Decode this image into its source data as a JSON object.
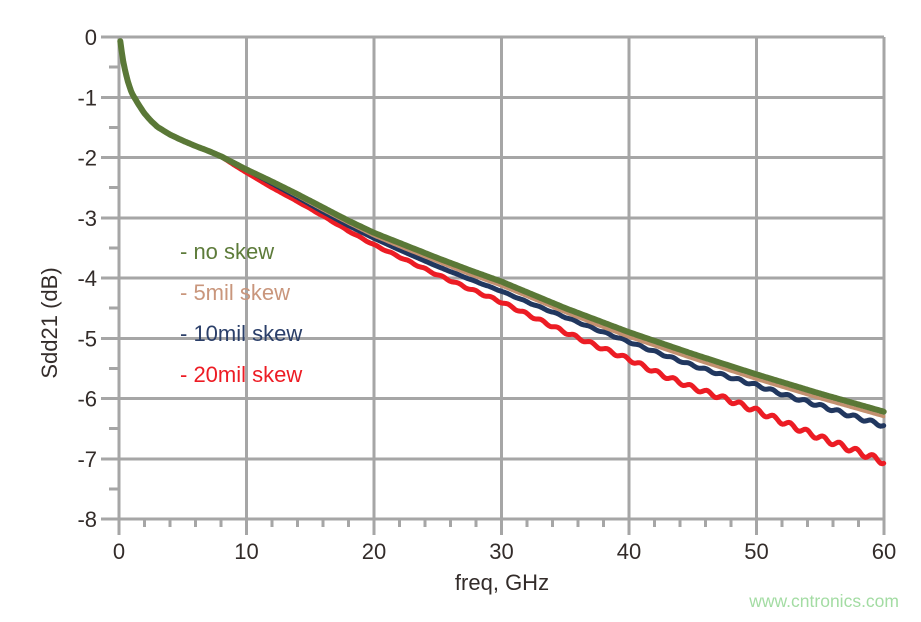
{
  "chart_data": {
    "type": "line",
    "title": "",
    "xlabel": "freq, GHz",
    "ylabel": "Sdd21 (dB)",
    "xlim": [
      0,
      60
    ],
    "ylim": [
      -8,
      0
    ],
    "grid": "major",
    "grid_color": "#a6a6a6",
    "text_color": "#332c2a",
    "background": "#ffffff",
    "x_major_ticks": [
      0,
      10,
      20,
      30,
      40,
      50,
      60
    ],
    "x_minor_step_ghz": 2,
    "y_major_ticks": [
      0,
      -1,
      -2,
      -3,
      -4,
      -5,
      -6,
      -7,
      -8
    ],
    "y_minor_step_db": 0.5,
    "x": [
      0.1,
      0.3,
      0.5,
      0.75,
      1,
      1.5,
      2,
      2.5,
      3,
      4,
      5,
      6,
      7,
      8,
      9,
      10,
      12,
      14,
      16,
      18,
      20,
      22.5,
      25,
      27.5,
      30,
      32.5,
      35,
      37.5,
      40,
      42.5,
      45,
      47.5,
      50,
      52.5,
      55,
      57.5,
      60
    ],
    "series": [
      {
        "name": "no skew",
        "color": "#5a7837",
        "width": 6,
        "y": [
          -0.07,
          -0.37,
          -0.58,
          -0.78,
          -0.93,
          -1.11,
          -1.27,
          -1.39,
          -1.49,
          -1.62,
          -1.72,
          -1.81,
          -1.89,
          -1.98,
          -2.09,
          -2.2,
          -2.4,
          -2.61,
          -2.83,
          -3.05,
          -3.25,
          -3.46,
          -3.67,
          -3.87,
          -4.06,
          -4.28,
          -4.5,
          -4.7,
          -4.9,
          -5.08,
          -5.26,
          -5.43,
          -5.6,
          -5.76,
          -5.92,
          -6.07,
          -6.22
        ]
      },
      {
        "name": "5mil skew",
        "color": "#c3906f",
        "width": 3.5,
        "y": [
          -0.07,
          -0.37,
          -0.58,
          -0.78,
          -0.93,
          -1.11,
          -1.27,
          -1.39,
          -1.49,
          -1.62,
          -1.72,
          -1.81,
          -1.89,
          -1.98,
          -2.09,
          -2.2,
          -2.42,
          -2.64,
          -2.87,
          -3.09,
          -3.3,
          -3.52,
          -3.73,
          -3.94,
          -4.13,
          -4.35,
          -4.57,
          -4.78,
          -4.98,
          -5.16,
          -5.34,
          -5.51,
          -5.68,
          -5.84,
          -6.0,
          -6.15,
          -6.3
        ]
      },
      {
        "name": "10mil skew",
        "color": "#21375f",
        "width": 5,
        "ripple": {
          "start_ghz": 24,
          "max_amp_db": 0.028,
          "period_ghz": 1.3,
          "phase": 2.0
        },
        "y": [
          -0.07,
          -0.37,
          -0.58,
          -0.78,
          -0.93,
          -1.11,
          -1.27,
          -1.39,
          -1.49,
          -1.62,
          -1.72,
          -1.81,
          -1.89,
          -1.98,
          -2.09,
          -2.2,
          -2.43,
          -2.66,
          -2.9,
          -3.13,
          -3.34,
          -3.58,
          -3.81,
          -4.02,
          -4.22,
          -4.44,
          -4.65,
          -4.86,
          -5.06,
          -5.26,
          -5.45,
          -5.62,
          -5.78,
          -5.96,
          -6.12,
          -6.29,
          -6.45
        ]
      },
      {
        "name": "20mil skew",
        "color": "#ec1c24",
        "width": 5,
        "ripple": {
          "start_ghz": 12,
          "max_amp_db": 0.048,
          "period_ghz": 1.3,
          "phase": 0.0
        },
        "y": [
          -0.07,
          -0.37,
          -0.58,
          -0.78,
          -0.93,
          -1.11,
          -1.27,
          -1.39,
          -1.49,
          -1.62,
          -1.72,
          -1.81,
          -1.89,
          -1.98,
          -2.12,
          -2.25,
          -2.5,
          -2.73,
          -2.97,
          -3.22,
          -3.45,
          -3.7,
          -3.95,
          -4.18,
          -4.4,
          -4.65,
          -4.9,
          -5.13,
          -5.35,
          -5.6,
          -5.82,
          -6.0,
          -6.2,
          -6.43,
          -6.65,
          -6.85,
          -7.05
        ]
      }
    ],
    "legend": {
      "position": "inside-upper-left",
      "items": [
        {
          "label": "- no skew",
          "color": "#5d7b3a"
        },
        {
          "label": "- 5mil skew",
          "color": "#c9967c"
        },
        {
          "label": "- 10mil skew",
          "color": "#2b3f69"
        },
        {
          "label": "- 20mil skew",
          "color": "#ed1c24"
        }
      ]
    }
  },
  "watermark": {
    "text": "www.cntronics.com",
    "color": "#a3dca3"
  }
}
